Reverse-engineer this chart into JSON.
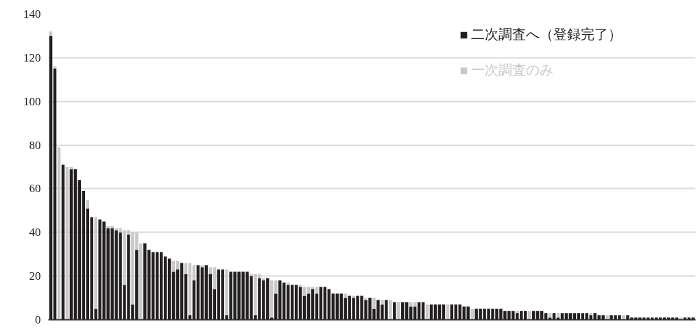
{
  "chart_data": {
    "type": "bar",
    "stacked": true,
    "categories": [
      null,
      null,
      null,
      null,
      null,
      null,
      null,
      null,
      null,
      null,
      null,
      null,
      null,
      null,
      null,
      null,
      null,
      null,
      null,
      null,
      null,
      null,
      null,
      null,
      null,
      null,
      null,
      null,
      null,
      null,
      null,
      null,
      null,
      null,
      null,
      null,
      null,
      null,
      null,
      null,
      null,
      null,
      null,
      null,
      null,
      null,
      null,
      null,
      null,
      null,
      null,
      null,
      null,
      null,
      null,
      null,
      null,
      null,
      null,
      null,
      null,
      null,
      null,
      null,
      null,
      null,
      null,
      null,
      null,
      null,
      null,
      null,
      null,
      null,
      null,
      null,
      null,
      null,
      null,
      null,
      null,
      null,
      null,
      null,
      null,
      null,
      null,
      null,
      null,
      null,
      null,
      null,
      null,
      null,
      null,
      null,
      null,
      null,
      null,
      null,
      null,
      null,
      null,
      null,
      null,
      null,
      null,
      null,
      null,
      null,
      null,
      null,
      null,
      null,
      null,
      null,
      null,
      null,
      null,
      null,
      null,
      null,
      null,
      null,
      null,
      null,
      null,
      null,
      null,
      null,
      null,
      null,
      null,
      null,
      null,
      null,
      null,
      null,
      null,
      null,
      null,
      null,
      null,
      null,
      null,
      null,
      null,
      null,
      null,
      null,
      null,
      null,
      null,
      null,
      null,
      null,
      null,
      null
    ],
    "series": [
      {
        "name": "二次調査へ（登録完了）",
        "color": "#231f20",
        "values": [
          130,
          115,
          0,
          71,
          0,
          69,
          69,
          64,
          59,
          51,
          47,
          5,
          46,
          45,
          42,
          42,
          41,
          40,
          16,
          39,
          7,
          32,
          0,
          35,
          32,
          31,
          31,
          31,
          29,
          28,
          22,
          23,
          26,
          21,
          2,
          18,
          25,
          24,
          25,
          21,
          14,
          23,
          23,
          2,
          22,
          22,
          22,
          22,
          22,
          20,
          2,
          19,
          18,
          19,
          1,
          12,
          18,
          17,
          16,
          16,
          16,
          15,
          11,
          12,
          14,
          12,
          15,
          15,
          14,
          12,
          12,
          12,
          10,
          11,
          10,
          11,
          11,
          9,
          10,
          5,
          9,
          7,
          9,
          0,
          8,
          0,
          8,
          8,
          6,
          6,
          8,
          8,
          0,
          7,
          7,
          7,
          7,
          0,
          7,
          7,
          7,
          6,
          6,
          0,
          5,
          5,
          5,
          5,
          5,
          5,
          5,
          4,
          4,
          4,
          3,
          4,
          4,
          0,
          4,
          4,
          4,
          3,
          1,
          3,
          1,
          3,
          3,
          3,
          3,
          3,
          3,
          3,
          2,
          3,
          2,
          2,
          0,
          2,
          2,
          2,
          0,
          2,
          1,
          1,
          1,
          1,
          1,
          1,
          1,
          1,
          1,
          1,
          1,
          1,
          0,
          1,
          1,
          1
        ]
      },
      {
        "name": "一次調査のみ",
        "color": "#c8c8c8",
        "values": [
          2,
          1,
          79,
          0,
          70,
          1,
          0,
          0,
          0,
          4,
          0,
          42,
          0,
          0,
          1,
          1,
          1,
          2,
          25,
          2,
          33,
          8,
          35,
          0,
          0,
          0,
          0,
          0,
          0,
          0,
          5,
          4,
          0,
          5,
          24,
          7,
          0,
          1,
          0,
          3,
          10,
          0,
          0,
          21,
          0,
          0,
          0,
          0,
          0,
          1,
          19,
          2,
          1,
          0,
          17,
          6,
          0,
          0,
          1,
          0,
          0,
          1,
          4,
          3,
          1,
          3,
          0,
          0,
          0,
          0,
          0,
          0,
          2,
          0,
          1,
          0,
          0,
          1,
          0,
          5,
          0,
          2,
          0,
          9,
          0,
          8,
          0,
          0,
          2,
          2,
          0,
          0,
          7,
          0,
          0,
          0,
          0,
          7,
          0,
          0,
          0,
          0,
          0,
          5,
          0,
          0,
          0,
          0,
          0,
          0,
          0,
          0,
          0,
          0,
          1,
          0,
          0,
          4,
          0,
          0,
          0,
          0,
          2,
          0,
          2,
          0,
          0,
          0,
          0,
          0,
          0,
          0,
          1,
          0,
          0,
          0,
          2,
          0,
          0,
          0,
          2,
          0,
          0,
          0,
          0,
          0,
          0,
          0,
          0,
          0,
          0,
          0,
          0,
          0,
          1,
          0,
          0,
          0
        ]
      }
    ],
    "ylim": [
      0,
      140
    ],
    "yticks": [
      0,
      20,
      40,
      60,
      80,
      100,
      120,
      140
    ],
    "grid": "y",
    "legend": "top right",
    "tick_labels": "y"
  }
}
